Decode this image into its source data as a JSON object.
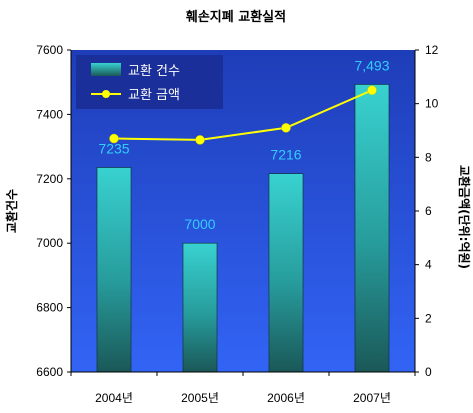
{
  "chart_data": {
    "type": "bar",
    "title": "훼손지폐 교환실적",
    "categories": [
      "2004년",
      "2005년",
      "2006년",
      "2007년"
    ],
    "series": [
      {
        "name": "교환 건수",
        "type": "bar",
        "axis": "left",
        "values": [
          7235,
          7000,
          7216,
          7493
        ],
        "labels": [
          "7235",
          "7000",
          "7216",
          "7,493"
        ],
        "color": "#2ec8c8"
      },
      {
        "name": "교환 금액",
        "type": "line",
        "axis": "right",
        "values": [
          8.7,
          8.65,
          9.1,
          10.5
        ],
        "color": "#ffff00"
      }
    ],
    "ylabel": "교환건수",
    "y2label": "교환금액(단위:억원)",
    "ylim": [
      6600,
      7600
    ],
    "yticks": [
      "6600",
      "6800",
      "7000",
      "7200",
      "7400",
      "7600"
    ],
    "y2lim": [
      0,
      12
    ],
    "y2ticks": [
      "0",
      "2",
      "4",
      "6",
      "8",
      "10",
      "12"
    ],
    "legend_position": "top-left",
    "plot_background": "#2a4ee0",
    "grid": false
  }
}
